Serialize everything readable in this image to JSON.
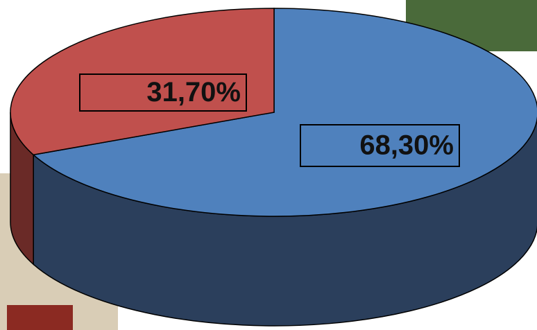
{
  "chart_data": {
    "type": "pie3d",
    "values": [
      68.3,
      31.7
    ],
    "value_labels": [
      "68,30%",
      "31,70%"
    ],
    "colors": [
      "#4f81bd",
      "#c0504d"
    ],
    "side_colors": [
      "#2b3f5c",
      "#6a2a27"
    ],
    "start_angle": -90
  }
}
